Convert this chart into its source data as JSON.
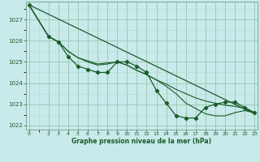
{
  "title": "Graphe pression niveau de la mer (hPa)",
  "bg_color": "#c8eaea",
  "grid_major_color": "#a0c8b8",
  "grid_minor_color": "#b8d8cc",
  "line_color": "#1a5c2a",
  "hours": [
    0,
    1,
    2,
    3,
    4,
    5,
    6,
    7,
    8,
    9,
    10,
    11,
    12,
    13,
    14,
    15,
    16,
    17,
    18,
    19,
    20,
    21,
    22,
    23
  ],
  "line_main": [
    1027.7,
    null,
    1026.2,
    1025.95,
    1025.25,
    1024.8,
    1024.65,
    1024.5,
    1024.5,
    1025.0,
    1025.0,
    1024.8,
    1024.5,
    1023.65,
    1023.05,
    1022.45,
    1022.35,
    1022.35,
    1022.85,
    1023.0,
    1023.1,
    1023.1,
    1022.85,
    1022.6
  ],
  "line_smooth1": [
    1027.7,
    null,
    1026.2,
    1025.95,
    1025.5,
    1025.2,
    1025.0,
    1024.85,
    1024.9,
    1025.0,
    1024.85,
    1024.6,
    1024.4,
    1024.15,
    1023.85,
    1023.5,
    1023.05,
    1022.8,
    1022.55,
    1022.45,
    1022.45,
    1022.6,
    1022.7,
    1022.6
  ],
  "line_smooth2": [
    1027.7,
    null,
    1026.2,
    1025.95,
    1025.5,
    1025.2,
    1025.05,
    1024.9,
    1024.95,
    1025.0,
    1024.85,
    1024.6,
    1024.4,
    1024.15,
    1023.95,
    1023.7,
    1023.5,
    1023.3,
    1023.15,
    1023.05,
    1022.95,
    1022.9,
    1022.8,
    1022.6
  ],
  "line_trend": [
    1027.7,
    1022.55
  ],
  "trend_x": [
    0,
    23
  ],
  "ylim": [
    1021.8,
    1027.85
  ],
  "yticks": [
    1022,
    1023,
    1024,
    1025,
    1026,
    1027
  ],
  "xlim": [
    -0.3,
    23.3
  ],
  "xticks": [
    0,
    2,
    3,
    4,
    5,
    6,
    7,
    8,
    9,
    10,
    11,
    12,
    13,
    14,
    15,
    16,
    17,
    18,
    19,
    20,
    21,
    22,
    23
  ]
}
